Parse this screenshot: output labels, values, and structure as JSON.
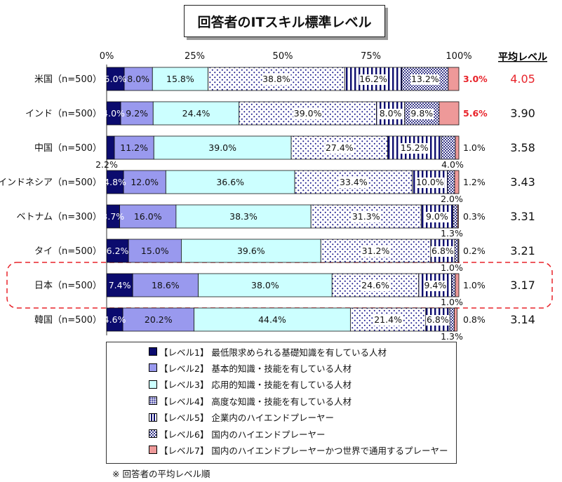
{
  "title": "回答者のITスキル標準レベル",
  "avg_header": "平均レベル",
  "note": "※ 回答者の平均レベル順",
  "colors": {
    "level1": "#0b0b6e",
    "level2": "#9999ee",
    "level3": "#ccffff",
    "level4_dot": "#1a1a8c",
    "level5_line": "#0b0b6e",
    "level6": "#5555aa",
    "level7": "#ee9999",
    "highlight_text": "#e8232a",
    "japan_border": "#e8232a"
  },
  "legend": [
    {
      "label": "【レベル1】 最低限求められる基礎知識を有している人材",
      "style": "level1"
    },
    {
      "label": "【レベル2】 基本的知識・技能を有している人材",
      "style": "level2"
    },
    {
      "label": "【レベル3】 応用的知識・技能を有している人材",
      "style": "level3"
    },
    {
      "label": "【レベル4】 高度な知識・技能を有している人材",
      "style": "level4"
    },
    {
      "label": "【レベル5】 企業内のハイエンドプレーヤー",
      "style": "level5"
    },
    {
      "label": "【レベル6】 国内のハイエンドプレーヤー",
      "style": "level6"
    },
    {
      "label": "【レベル7】 国内のハイエンドプレーヤーかつ世界で通用するプレーヤー",
      "style": "level7"
    }
  ],
  "chart_data": {
    "type": "bar",
    "orientation": "horizontal-stacked-100",
    "xlim": [
      0,
      100
    ],
    "x_ticks": [
      "0%",
      "25%",
      "50%",
      "75%",
      "100%"
    ],
    "categories": [
      "米国（n=500）",
      "インド（n=500）",
      "中国（n=500）",
      "インドネシア（n=500）",
      "ベトナム（n=300）",
      "タイ（n=500）",
      "日本（n=500）",
      "韓国（n=500）"
    ],
    "series": [
      {
        "name": "【レベル1】",
        "values": [
          5.0,
          4.0,
          2.2,
          4.8,
          3.7,
          6.2,
          7.4,
          4.6
        ]
      },
      {
        "name": "【レベル2】",
        "values": [
          8.0,
          9.2,
          11.2,
          12.0,
          16.0,
          15.0,
          18.6,
          20.2
        ]
      },
      {
        "name": "【レベル3】",
        "values": [
          15.8,
          24.4,
          39.0,
          36.6,
          38.3,
          39.6,
          38.0,
          44.4
        ]
      },
      {
        "name": "【レベル4】",
        "values": [
          38.8,
          39.0,
          27.4,
          33.4,
          31.3,
          31.2,
          24.6,
          21.4
        ]
      },
      {
        "name": "【レベル5】",
        "values": [
          16.2,
          8.0,
          15.2,
          10.0,
          9.0,
          6.8,
          9.4,
          6.8
        ]
      },
      {
        "name": "【レベル6】",
        "values": [
          13.2,
          9.8,
          4.0,
          2.0,
          1.3,
          1.0,
          1.0,
          1.3
        ]
      },
      {
        "name": "【レベル7】",
        "values": [
          3.0,
          5.6,
          1.0,
          1.2,
          0.3,
          0.2,
          1.0,
          0.8
        ]
      }
    ],
    "labels": [
      [
        "5.0%",
        "8.0%",
        "15.8%",
        "38.8%",
        "16.2%",
        "13.2%",
        "3.0%"
      ],
      [
        "4.0%",
        "9.2%",
        "24.4%",
        "39.0%",
        "8.0%",
        "9.8%",
        "5.6%"
      ],
      [
        "2.2%",
        "11.2%",
        "39.0%",
        "27.4%",
        "15.2%",
        "4.0%",
        "1.0%"
      ],
      [
        "4.8%",
        "12.0%",
        "36.6%",
        "33.4%",
        "10.0%",
        "2.0%",
        "1.2%"
      ],
      [
        "3.7%",
        "16.0%",
        "38.3%",
        "31.3%",
        "9.0%",
        "1.3%",
        "0.3%"
      ],
      [
        "6.2%",
        "15.0%",
        "39.6%",
        "31.2%",
        "6.8%",
        "1.0%",
        "0.2%"
      ],
      [
        "7.4%",
        "18.6%",
        "38.0%",
        "24.6%",
        "9.4%",
        "1.0%",
        "1.0%"
      ],
      [
        "4.6%",
        "20.2%",
        "44.4%",
        "21.4%",
        "6.8%",
        "1.3%",
        "0.8%"
      ]
    ],
    "averages": [
      "4.05",
      "3.90",
      "3.58",
      "3.43",
      "3.31",
      "3.21",
      "3.17",
      "3.14"
    ],
    "highlight": {
      "average_row": 0,
      "level7_red_rows": [
        0,
        1
      ],
      "boxed_row": 6
    },
    "legend_position": "bottom"
  }
}
